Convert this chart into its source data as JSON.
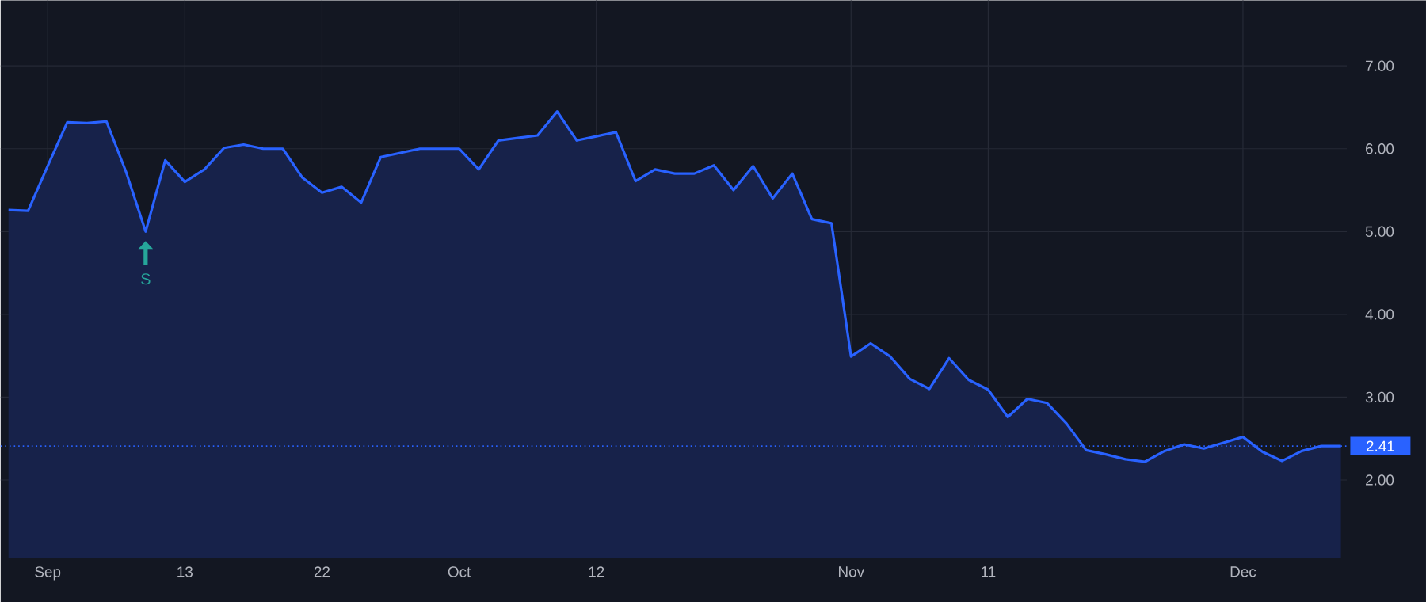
{
  "chart_data": {
    "type": "area",
    "categories": [
      null,
      null,
      "Sep",
      null,
      null,
      null,
      null,
      null,
      null,
      "13",
      null,
      null,
      null,
      null,
      null,
      null,
      "22",
      null,
      null,
      null,
      null,
      null,
      null,
      "Oct",
      null,
      null,
      null,
      null,
      null,
      null,
      "12",
      null,
      null,
      null,
      null,
      null,
      null,
      null,
      null,
      null,
      null,
      null,
      null,
      "Nov",
      null,
      null,
      null,
      null,
      null,
      null,
      "11",
      null,
      null,
      null,
      null,
      null,
      null,
      null,
      null,
      null,
      null,
      null,
      null,
      "Dec",
      null,
      null,
      null,
      null,
      null
    ],
    "series": [
      {
        "color": "#2962ff",
        "values": [
          5.26,
          5.25,
          5.79,
          6.32,
          6.31,
          6.33,
          5.72,
          5.0,
          5.86,
          5.6,
          5.75,
          6.01,
          6.05,
          6.0,
          6.0,
          5.65,
          5.47,
          5.54,
          5.35,
          5.9,
          5.95,
          6.0,
          6.0,
          6.0,
          5.75,
          6.1,
          6.13,
          6.16,
          6.45,
          6.1,
          6.15,
          6.2,
          5.61,
          5.75,
          5.7,
          5.7,
          5.8,
          5.5,
          5.79,
          5.4,
          5.7,
          5.15,
          5.1,
          3.49,
          3.65,
          3.49,
          3.22,
          3.1,
          3.47,
          3.21,
          3.09,
          2.76,
          2.98,
          2.93,
          2.68,
          2.36,
          2.31,
          2.25,
          2.22,
          2.35,
          2.43,
          2.38,
          2.45,
          2.52,
          2.34,
          2.23,
          2.35,
          2.41,
          2.41
        ]
      }
    ],
    "ylim": [
      1.06,
      7.79
    ],
    "yticks": [
      {
        "value": 2,
        "label": "2.00"
      },
      {
        "value": 3,
        "label": "3.00"
      },
      {
        "value": 4,
        "label": "4.00"
      },
      {
        "value": 5,
        "label": "5.00"
      },
      {
        "value": 6,
        "label": "6.00"
      },
      {
        "value": 7,
        "label": "7.00"
      }
    ],
    "grid": true,
    "ref_lines": [
      {
        "axis": "y",
        "value": 2.41,
        "label": "2.41",
        "color": "#2962ff",
        "line_style": "dotted"
      }
    ],
    "annotations": [
      {
        "text": "S",
        "y": 5.0
      }
    ]
  }
}
